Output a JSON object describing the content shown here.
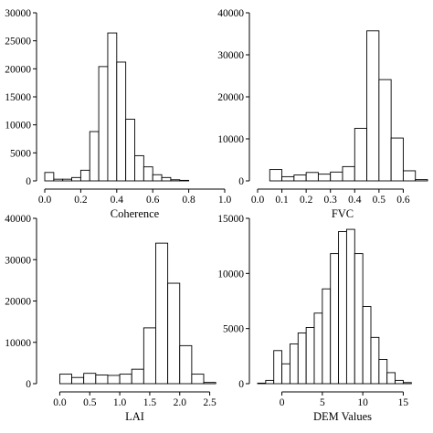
{
  "chart_data": [
    {
      "type": "bar",
      "panel": "top-left",
      "title": "",
      "xlabel": "Coherence",
      "ylabel": "",
      "xlim": [
        0,
        1
      ],
      "ylim": [
        0,
        30000
      ],
      "xticks": [
        0.0,
        0.2,
        0.4,
        0.6,
        0.8,
        1.0
      ],
      "xtick_labels": [
        "0.0",
        "0.2",
        "0.4",
        "0.6",
        "0.8",
        "1.0"
      ],
      "yticks": [
        0,
        5000,
        10000,
        15000,
        20000,
        25000,
        30000
      ],
      "ytick_labels": [
        "0",
        "5000",
        "10000",
        "15000",
        "20000",
        "25000",
        "30000"
      ],
      "bin_width": 0.05,
      "bins": [
        {
          "x": 0.0,
          "value": 1500
        },
        {
          "x": 0.05,
          "value": 300
        },
        {
          "x": 0.1,
          "value": 300
        },
        {
          "x": 0.15,
          "value": 600
        },
        {
          "x": 0.2,
          "value": 1900
        },
        {
          "x": 0.25,
          "value": 8800
        },
        {
          "x": 0.3,
          "value": 20400
        },
        {
          "x": 0.35,
          "value": 26400
        },
        {
          "x": 0.4,
          "value": 21200
        },
        {
          "x": 0.45,
          "value": 11000
        },
        {
          "x": 0.5,
          "value": 4500
        },
        {
          "x": 0.55,
          "value": 2500
        },
        {
          "x": 0.6,
          "value": 1100
        },
        {
          "x": 0.65,
          "value": 600
        },
        {
          "x": 0.7,
          "value": 200
        },
        {
          "x": 0.75,
          "value": 100
        }
      ]
    },
    {
      "type": "bar",
      "panel": "top-right",
      "title": "",
      "xlabel": "FVC",
      "ylabel": "",
      "xlim": [
        0,
        0.7
      ],
      "ylim": [
        0,
        40000
      ],
      "xticks": [
        0.0,
        0.1,
        0.2,
        0.3,
        0.4,
        0.5,
        0.6
      ],
      "xtick_labels": [
        "0.0",
        "0.1",
        "0.2",
        "0.3",
        "0.4",
        "0.5",
        "0.6"
      ],
      "yticks": [
        0,
        10000,
        20000,
        30000,
        40000
      ],
      "ytick_labels": [
        "0",
        "10000",
        "20000",
        "30000",
        "40000"
      ],
      "bin_width": 0.05,
      "bins": [
        {
          "x": 0.0,
          "value": 0
        },
        {
          "x": 0.05,
          "value": 2700
        },
        {
          "x": 0.1,
          "value": 1000
        },
        {
          "x": 0.15,
          "value": 1400
        },
        {
          "x": 0.2,
          "value": 2000
        },
        {
          "x": 0.25,
          "value": 1600
        },
        {
          "x": 0.3,
          "value": 2100
        },
        {
          "x": 0.35,
          "value": 3400
        },
        {
          "x": 0.4,
          "value": 12500
        },
        {
          "x": 0.45,
          "value": 35700
        },
        {
          "x": 0.5,
          "value": 24100
        },
        {
          "x": 0.55,
          "value": 10200
        },
        {
          "x": 0.6,
          "value": 2400
        },
        {
          "x": 0.65,
          "value": 300
        }
      ]
    },
    {
      "type": "bar",
      "panel": "bottom-left",
      "title": "",
      "xlabel": "LAI",
      "ylabel": "",
      "xlim": [
        -0.25,
        2.75
      ],
      "ylim": [
        0,
        40000
      ],
      "xticks": [
        0.0,
        0.5,
        1.0,
        1.5,
        2.0,
        2.5
      ],
      "xtick_labels": [
        "0.0",
        "0.5",
        "1.0",
        "1.5",
        "2.0",
        "2.5"
      ],
      "yticks": [
        0,
        10000,
        20000,
        30000,
        40000
      ],
      "ytick_labels": [
        "0",
        "10000",
        "20000",
        "30000",
        "40000"
      ],
      "bin_width": 0.2,
      "bins": [
        {
          "x": -0.05,
          "value": 0
        },
        {
          "x": 0.0,
          "value": 2300
        },
        {
          "x": 0.2,
          "value": 1500
        },
        {
          "x": 0.4,
          "value": 2500
        },
        {
          "x": 0.6,
          "value": 2100
        },
        {
          "x": 0.8,
          "value": 2000
        },
        {
          "x": 1.0,
          "value": 2300
        },
        {
          "x": 1.2,
          "value": 3500
        },
        {
          "x": 1.4,
          "value": 13500
        },
        {
          "x": 1.6,
          "value": 34000
        },
        {
          "x": 1.8,
          "value": 24300
        },
        {
          "x": 2.0,
          "value": 9200
        },
        {
          "x": 2.2,
          "value": 2300
        },
        {
          "x": 2.4,
          "value": 300
        }
      ]
    },
    {
      "type": "bar",
      "panel": "bottom-right",
      "title": "",
      "xlabel": "DEM Values",
      "ylabel": "",
      "xlim": [
        -3,
        18
      ],
      "ylim": [
        0,
        15000
      ],
      "xticks": [
        0,
        5,
        10,
        15
      ],
      "xtick_labels": [
        "0",
        "5",
        "10",
        "15"
      ],
      "yticks": [
        0,
        5000,
        10000,
        15000
      ],
      "ytick_labels": [
        "0",
        "5000",
        "10000",
        "15000"
      ],
      "bin_width": 1,
      "bins": [
        {
          "x": -3,
          "value": 50
        },
        {
          "x": -2,
          "value": 300
        },
        {
          "x": -1,
          "value": 3000
        },
        {
          "x": 0,
          "value": 1800
        },
        {
          "x": 1,
          "value": 3600
        },
        {
          "x": 2,
          "value": 4600
        },
        {
          "x": 3,
          "value": 5100
        },
        {
          "x": 4,
          "value": 6400
        },
        {
          "x": 5,
          "value": 8600
        },
        {
          "x": 6,
          "value": 11800
        },
        {
          "x": 7,
          "value": 13800
        },
        {
          "x": 8,
          "value": 14000
        },
        {
          "x": 9,
          "value": 11800
        },
        {
          "x": 10,
          "value": 7000
        },
        {
          "x": 11,
          "value": 4200
        },
        {
          "x": 12,
          "value": 2200
        },
        {
          "x": 13,
          "value": 1000
        },
        {
          "x": 14,
          "value": 300
        },
        {
          "x": 15,
          "value": 100
        }
      ]
    }
  ]
}
